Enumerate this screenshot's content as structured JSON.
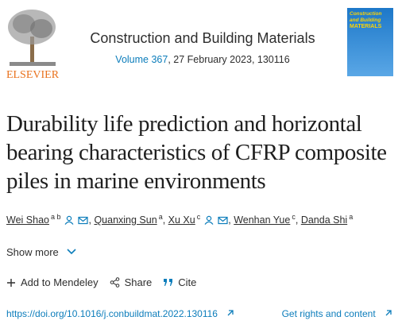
{
  "header": {
    "publisher": "ELSEVIER",
    "journal": "Construction and Building Materials",
    "volume": "Volume 367",
    "issue_info": ", 27 February 2023, 130116",
    "cover_title": "Construction and Building",
    "cover_subtitle": "MATERIALS"
  },
  "article": {
    "title": "Durability life prediction and horizontal bearing characteristics of CFRP composite piles in marine environments",
    "separator": ",",
    "authors": [
      {
        "name": "Wei Shao",
        "affiliations": "a b",
        "icons": true
      },
      {
        "name": "Quanxing Sun",
        "affiliations": "a",
        "icons": false
      },
      {
        "name": "Xu Xu",
        "affiliations": "c",
        "icons": true
      },
      {
        "name": "Wenhan Yue",
        "affiliations": "c",
        "icons": false
      },
      {
        "name": "Danda Shi",
        "affiliations": "a",
        "icons": false
      }
    ],
    "show_more": "Show more",
    "actions": [
      "Add to Mendeley",
      "Share",
      "Cite"
    ],
    "doi": "https://doi.org/10.1016/j.conbuildmat.2022.130116",
    "rights": "Get rights and content"
  }
}
